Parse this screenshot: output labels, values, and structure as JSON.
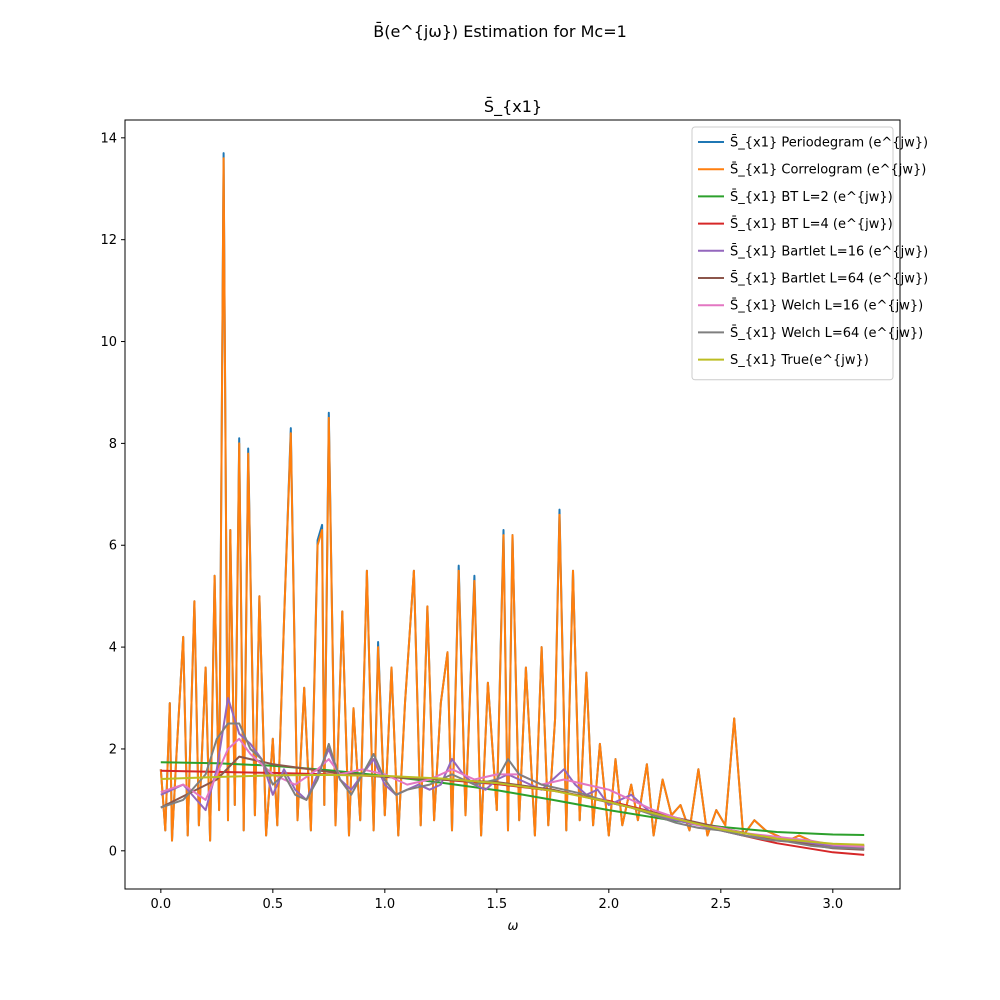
{
  "figure": {
    "suptitle": "B̄(e^{jω}) Estimation for Mc=1"
  },
  "chart_data": {
    "type": "line",
    "title": "S̄_{x1}",
    "xlabel": "ω",
    "ylabel": "",
    "xlim": [
      -0.16,
      3.3
    ],
    "ylim": [
      -0.75,
      14.35
    ],
    "xticks": [
      0.0,
      0.5,
      1.0,
      1.5,
      2.0,
      2.5,
      3.0
    ],
    "xtick_labels": [
      "0.0",
      "0.5",
      "1.0",
      "1.5",
      "2.0",
      "2.5",
      "3.0"
    ],
    "yticks": [
      0,
      2,
      4,
      6,
      8,
      10,
      12,
      14
    ],
    "ytick_labels": [
      "0",
      "2",
      "4",
      "6",
      "8",
      "10",
      "12",
      "14"
    ],
    "grid": false,
    "legend_position": "top-right",
    "series": [
      {
        "name": "S̄_{x1} Periodegram (e^{jw})",
        "color": "#1f77b4",
        "x": [
          0.0,
          0.02,
          0.04,
          0.05,
          0.07,
          0.1,
          0.12,
          0.15,
          0.17,
          0.2,
          0.22,
          0.24,
          0.26,
          0.28,
          0.3,
          0.31,
          0.33,
          0.35,
          0.37,
          0.39,
          0.42,
          0.44,
          0.47,
          0.5,
          0.52,
          0.55,
          0.58,
          0.61,
          0.64,
          0.67,
          0.7,
          0.72,
          0.73,
          0.75,
          0.78,
          0.81,
          0.84,
          0.86,
          0.89,
          0.92,
          0.95,
          0.97,
          1.0,
          1.03,
          1.06,
          1.09,
          1.13,
          1.16,
          1.19,
          1.22,
          1.25,
          1.28,
          1.3,
          1.33,
          1.36,
          1.4,
          1.43,
          1.46,
          1.5,
          1.53,
          1.55,
          1.57,
          1.6,
          1.63,
          1.67,
          1.7,
          1.73,
          1.76,
          1.78,
          1.81,
          1.84,
          1.87,
          1.9,
          1.93,
          1.96,
          2.0,
          2.03,
          2.06,
          2.1,
          2.13,
          2.17,
          2.2,
          2.24,
          2.28,
          2.32,
          2.36,
          2.4,
          2.44,
          2.48,
          2.52,
          2.56,
          2.6,
          2.65,
          2.7,
          2.75,
          2.8,
          2.85,
          2.9,
          2.95,
          3.0,
          3.05,
          3.1,
          3.14
        ],
        "y": [
          1.6,
          0.4,
          2.9,
          0.2,
          1.9,
          4.2,
          0.3,
          4.9,
          0.5,
          3.6,
          0.2,
          5.4,
          0.8,
          13.7,
          0.6,
          6.3,
          0.9,
          8.1,
          0.4,
          7.9,
          0.7,
          5.0,
          0.3,
          2.2,
          0.5,
          4.5,
          8.3,
          0.6,
          3.2,
          0.4,
          6.1,
          6.4,
          0.9,
          8.6,
          0.5,
          4.7,
          0.3,
          2.8,
          0.6,
          5.5,
          0.4,
          4.1,
          0.7,
          3.6,
          0.3,
          2.9,
          5.5,
          0.5,
          4.8,
          0.6,
          2.9,
          3.9,
          0.4,
          5.6,
          0.7,
          5.4,
          0.3,
          3.3,
          0.8,
          6.3,
          0.4,
          6.2,
          0.6,
          3.6,
          0.3,
          4.0,
          0.5,
          2.6,
          6.7,
          0.4,
          5.5,
          0.6,
          3.5,
          0.5,
          2.1,
          0.3,
          1.8,
          0.5,
          1.3,
          0.6,
          1.7,
          0.3,
          1.4,
          0.7,
          0.9,
          0.4,
          1.6,
          0.3,
          0.8,
          0.5,
          2.6,
          0.3,
          0.6,
          0.4,
          0.3,
          0.2,
          0.3,
          0.2,
          0.1,
          0.1,
          0.1,
          0.1,
          0.1
        ]
      },
      {
        "name": "S̄_{x1} Correlogram (e^{jw})",
        "color": "#ff7f0e",
        "x": [
          0.0,
          0.02,
          0.04,
          0.05,
          0.07,
          0.1,
          0.12,
          0.15,
          0.17,
          0.2,
          0.22,
          0.24,
          0.26,
          0.28,
          0.3,
          0.31,
          0.33,
          0.35,
          0.37,
          0.39,
          0.42,
          0.44,
          0.47,
          0.5,
          0.52,
          0.55,
          0.58,
          0.61,
          0.64,
          0.67,
          0.7,
          0.72,
          0.73,
          0.75,
          0.78,
          0.81,
          0.84,
          0.86,
          0.89,
          0.92,
          0.95,
          0.97,
          1.0,
          1.03,
          1.06,
          1.09,
          1.13,
          1.16,
          1.19,
          1.22,
          1.25,
          1.28,
          1.3,
          1.33,
          1.36,
          1.4,
          1.43,
          1.46,
          1.5,
          1.53,
          1.55,
          1.57,
          1.6,
          1.63,
          1.67,
          1.7,
          1.73,
          1.76,
          1.78,
          1.81,
          1.84,
          1.87,
          1.9,
          1.93,
          1.96,
          2.0,
          2.03,
          2.06,
          2.1,
          2.13,
          2.17,
          2.2,
          2.24,
          2.28,
          2.32,
          2.36,
          2.4,
          2.44,
          2.48,
          2.52,
          2.56,
          2.6,
          2.65,
          2.7,
          2.75,
          2.8,
          2.85,
          2.9,
          2.95,
          3.0,
          3.05,
          3.1,
          3.14
        ],
        "y": [
          1.6,
          0.4,
          2.9,
          0.2,
          1.9,
          4.2,
          0.3,
          4.9,
          0.5,
          3.6,
          0.2,
          5.4,
          0.8,
          13.6,
          0.6,
          6.3,
          0.9,
          8.0,
          0.4,
          7.8,
          0.7,
          5.0,
          0.3,
          2.2,
          0.5,
          4.5,
          8.2,
          0.6,
          3.2,
          0.4,
          6.0,
          6.3,
          0.9,
          8.5,
          0.5,
          4.7,
          0.3,
          2.8,
          0.6,
          5.5,
          0.4,
          4.0,
          0.7,
          3.6,
          0.3,
          2.9,
          5.5,
          0.5,
          4.8,
          0.6,
          2.9,
          3.9,
          0.4,
          5.5,
          0.7,
          5.3,
          0.3,
          3.3,
          0.8,
          6.2,
          0.4,
          6.2,
          0.6,
          3.6,
          0.3,
          4.0,
          0.5,
          2.6,
          6.6,
          0.4,
          5.5,
          0.6,
          3.5,
          0.5,
          2.1,
          0.3,
          1.8,
          0.5,
          1.3,
          0.6,
          1.7,
          0.3,
          1.4,
          0.7,
          0.9,
          0.4,
          1.6,
          0.3,
          0.8,
          0.5,
          2.6,
          0.3,
          0.6,
          0.4,
          0.3,
          0.2,
          0.3,
          0.2,
          0.1,
          0.1,
          0.1,
          0.1,
          0.1
        ]
      },
      {
        "name": "S̄_{x1} BT L=2 (e^{jw})",
        "color": "#2ca02c",
        "x": [
          0.0,
          0.25,
          0.5,
          0.75,
          1.0,
          1.25,
          1.5,
          1.75,
          2.0,
          2.25,
          2.5,
          2.75,
          3.0,
          3.14
        ],
        "y": [
          1.74,
          1.72,
          1.67,
          1.58,
          1.47,
          1.34,
          1.19,
          1.0,
          0.8,
          0.62,
          0.47,
          0.37,
          0.32,
          0.31
        ]
      },
      {
        "name": "S̄_{x1} BT L=4 (e^{jw})",
        "color": "#d62728",
        "x": [
          0.0,
          0.25,
          0.5,
          0.75,
          1.0,
          1.25,
          1.5,
          1.75,
          2.0,
          2.25,
          2.5,
          2.75,
          3.0,
          3.14
        ],
        "y": [
          1.57,
          1.55,
          1.53,
          1.5,
          1.46,
          1.4,
          1.31,
          1.18,
          0.98,
          0.7,
          0.4,
          0.15,
          -0.03,
          -0.08
        ]
      },
      {
        "name": "S̄_{x1} Bartlet L=16 (e^{jw})",
        "color": "#9467bd",
        "x": [
          0.0,
          0.1,
          0.2,
          0.25,
          0.3,
          0.35,
          0.4,
          0.45,
          0.5,
          0.55,
          0.6,
          0.65,
          0.7,
          0.75,
          0.8,
          0.85,
          0.9,
          0.95,
          1.0,
          1.05,
          1.1,
          1.15,
          1.2,
          1.25,
          1.3,
          1.35,
          1.4,
          1.45,
          1.5,
          1.55,
          1.6,
          1.65,
          1.7,
          1.75,
          1.8,
          1.85,
          1.9,
          1.95,
          2.0,
          2.1,
          2.2,
          2.3,
          2.4,
          2.5,
          2.6,
          2.7,
          2.8,
          2.9,
          3.0,
          3.14
        ],
        "y": [
          1.1,
          1.3,
          0.8,
          1.6,
          3.0,
          2.3,
          2.1,
          1.8,
          1.1,
          1.6,
          1.2,
          1.0,
          1.5,
          2.0,
          1.4,
          1.2,
          1.5,
          1.8,
          1.3,
          1.1,
          1.2,
          1.3,
          1.2,
          1.3,
          1.8,
          1.5,
          1.3,
          1.2,
          1.4,
          1.5,
          1.4,
          1.3,
          1.2,
          1.4,
          1.6,
          1.3,
          1.1,
          1.2,
          0.9,
          1.1,
          0.7,
          0.6,
          0.5,
          0.4,
          0.3,
          0.25,
          0.2,
          0.15,
          0.1,
          0.05
        ]
      },
      {
        "name": "S̄_{x1} Bartlet L=64 (e^{jw})",
        "color": "#8c564b",
        "x": [
          0.0,
          0.25,
          0.35,
          0.5,
          0.75,
          1.0,
          1.25,
          1.5,
          1.75,
          2.0,
          2.25,
          2.5,
          2.75,
          3.0,
          3.14
        ],
        "y": [
          0.85,
          1.4,
          1.85,
          1.7,
          1.55,
          1.45,
          1.4,
          1.35,
          1.2,
          0.95,
          0.7,
          0.45,
          0.22,
          0.05,
          0.02
        ]
      },
      {
        "name": "S̄_{x1} Welch L=16 (e^{jw})",
        "color": "#e377c2",
        "x": [
          0.0,
          0.1,
          0.2,
          0.3,
          0.35,
          0.4,
          0.5,
          0.6,
          0.7,
          0.75,
          0.8,
          0.9,
          1.0,
          1.1,
          1.2,
          1.3,
          1.4,
          1.5,
          1.6,
          1.7,
          1.8,
          1.9,
          2.0,
          2.1,
          2.2,
          2.3,
          2.4,
          2.5,
          2.6,
          2.7,
          2.8,
          2.9,
          3.0,
          3.14
        ],
        "y": [
          1.15,
          1.3,
          1.0,
          2.0,
          2.2,
          1.9,
          1.5,
          1.3,
          1.6,
          1.8,
          1.5,
          1.6,
          1.5,
          1.3,
          1.4,
          1.6,
          1.4,
          1.5,
          1.5,
          1.3,
          1.4,
          1.3,
          1.2,
          1.0,
          0.8,
          0.65,
          0.5,
          0.45,
          0.35,
          0.3,
          0.25,
          0.2,
          0.12,
          0.08
        ]
      },
      {
        "name": "S̄_{x1} Welch L=64 (e^{jw})",
        "color": "#7f7f7f",
        "x": [
          0.0,
          0.1,
          0.2,
          0.25,
          0.3,
          0.35,
          0.4,
          0.45,
          0.5,
          0.55,
          0.6,
          0.65,
          0.7,
          0.75,
          0.8,
          0.85,
          0.9,
          0.95,
          1.0,
          1.05,
          1.1,
          1.2,
          1.3,
          1.4,
          1.5,
          1.55,
          1.6,
          1.7,
          1.8,
          1.9,
          2.0,
          2.1,
          2.2,
          2.3,
          2.4,
          2.5,
          2.6,
          2.7,
          2.8,
          2.9,
          3.0,
          3.14
        ],
        "y": [
          0.85,
          1.0,
          1.5,
          2.2,
          2.5,
          2.5,
          2.0,
          1.8,
          1.3,
          1.5,
          1.1,
          1.0,
          1.4,
          2.1,
          1.4,
          1.1,
          1.5,
          1.9,
          1.4,
          1.1,
          1.2,
          1.3,
          1.5,
          1.3,
          1.4,
          1.8,
          1.5,
          1.3,
          1.2,
          1.1,
          0.95,
          0.85,
          0.7,
          0.55,
          0.45,
          0.4,
          0.3,
          0.22,
          0.18,
          0.1,
          0.06,
          0.04
        ]
      },
      {
        "name": "S_{x1} True(e^{jw})",
        "color": "#bcbd22",
        "x": [
          0.0,
          0.25,
          0.5,
          0.75,
          1.0,
          1.25,
          1.5,
          1.75,
          2.0,
          2.25,
          2.5,
          2.75,
          3.0,
          3.14
        ],
        "y": [
          1.41,
          1.45,
          1.48,
          1.49,
          1.47,
          1.42,
          1.33,
          1.18,
          0.96,
          0.68,
          0.42,
          0.24,
          0.14,
          0.12
        ]
      }
    ]
  }
}
